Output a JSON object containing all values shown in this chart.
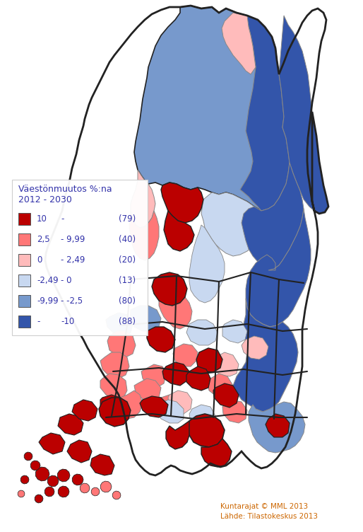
{
  "title_line1": "Väestönmuutos %:na",
  "title_line2": "2012 - 2030",
  "legend_entries": [
    {
      "label_a": "10",
      "label_b": "-",
      "label_c": "(79)",
      "color": "#bb0000"
    },
    {
      "label_a": "2,5",
      "label_b": "- 9,99",
      "label_c": "(40)",
      "color": "#ff7777"
    },
    {
      "label_a": "0",
      "label_b": "- 2,49",
      "label_c": "(20)",
      "color": "#ffbbbb"
    },
    {
      "label_a": "-2,49",
      "label_b": "- 0",
      "label_c": "(13)",
      "color": "#c8d8f0"
    },
    {
      "label_a": "-9,99",
      "label_b": "- -2,5",
      "label_c": "(80)",
      "color": "#7799cc"
    },
    {
      "label_a": "-",
      "label_b": "-10",
      "label_c": "(88)",
      "color": "#3355aa"
    }
  ],
  "footer_line1": "Kuntarajat © MML 2013",
  "footer_line2": "Lähde: Tilastokeskus 2013",
  "bg_color": "#ffffff",
  "text_color": "#cc6600",
  "legend_title_color": "#3333aa",
  "legend_label_color": "#3333aa",
  "figsize": [
    5.14,
    7.52
  ],
  "dpi": 100,
  "colors": {
    "dark_red": "#bb0000",
    "med_red": "#ff7777",
    "light_pink": "#ffbbbb",
    "light_blue": "#c8d8f0",
    "med_blue": "#7799cc",
    "dark_blue": "#3355aa",
    "border_dark": "#222222",
    "border_light": "#888888"
  }
}
